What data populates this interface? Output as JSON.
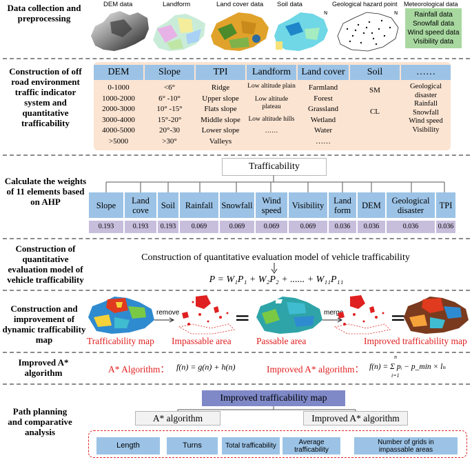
{
  "stages": [
    "Data collection and preprocessing",
    "Construction of off road environment traffic indicator system and quantitative trafficability",
    "Calculate the weights of 11 elements based on AHP",
    "Construction of quantitative evaluation model of vehicle trafficability",
    "Construction and improvement of dynamic trafficability map",
    "Improved A* algorithm",
    "Path planning and comparative analysis"
  ],
  "data_sources": {
    "dem": "DEM data",
    "landform": "Landform",
    "landcover": "Land cover data",
    "soil": "Soil data",
    "geo": "Geological hazard point",
    "met": "Meteorological data",
    "met_items": [
      "Rainfall data",
      "Snowfall data",
      "Wind speed data",
      "Visibility data"
    ]
  },
  "indicators": [
    {
      "header": "DEM",
      "values": [
        "0-1000",
        "1000-2000",
        "2000-3000",
        "3000-4000",
        "4000-5000",
        ">5000"
      ]
    },
    {
      "header": "Slope",
      "values": [
        "<6°",
        "6° -10°",
        "10° -15°",
        "15°-20°",
        "20°-30",
        ">30°"
      ]
    },
    {
      "header": "TPI",
      "values": [
        "Ridge",
        "Upper slope",
        "Flats slope",
        "Middle slope",
        "Lower slope",
        "Valleys"
      ]
    },
    {
      "header": "Landform",
      "values": [
        "Low altitude plain",
        "Low altitude plateau",
        "Low altitude hills",
        "……"
      ]
    },
    {
      "header": "Land cover",
      "values": [
        "Farmland",
        "Forest",
        "Grassland",
        "Wetland",
        "Water",
        "……"
      ]
    },
    {
      "header": "Soil",
      "values": [
        "SM",
        "CL"
      ]
    },
    {
      "header": "……",
      "values": [
        "Geological disaster",
        "Rainfall",
        "Snowfall",
        "Wind speed",
        "Visibility"
      ]
    }
  ],
  "ahp": {
    "root": "Trafficability",
    "elements": [
      {
        "name": "Slope",
        "weight": "0.193"
      },
      {
        "name": "Land cove",
        "weight": "0.193"
      },
      {
        "name": "Soil",
        "weight": "0.193"
      },
      {
        "name": "Rainfall",
        "weight": "0.069"
      },
      {
        "name": "Snowfall",
        "weight": "0.069"
      },
      {
        "name": "Wind speed",
        "weight": "0.069"
      },
      {
        "name": "Visibility",
        "weight": "0.069"
      },
      {
        "name": "Land form",
        "weight": "0.036"
      },
      {
        "name": "DEM",
        "weight": "0.036"
      },
      {
        "name": "Geological disaster",
        "weight": "0.036"
      },
      {
        "name": "TPI",
        "weight": "0.036"
      }
    ]
  },
  "model": {
    "title": "Construction of quantitative evaluation model of vehicle trafficability",
    "formula": "P = W₁P₁ + W₂P₂ + ...... + W₁₁P₁₁"
  },
  "maps": {
    "remove": "remove",
    "merge": "merge",
    "labels": [
      "Trafficability map",
      "Impassable area",
      "Passable area",
      "Improved trafficability map"
    ],
    "equals": "="
  },
  "astar": {
    "label": "A* Algorithm：",
    "formula": "f(n) = g(n) + h(n)",
    "improved_label": "Improved A* algorithm：",
    "improved_formula": "f(n) = Σ pᵢ − p_min × lₙ",
    "sum_top": "n",
    "sum_bottom": "i=1"
  },
  "planning": {
    "map": "Improved trafficability map",
    "a_star": "A* algorithm",
    "improved": "Improved A* algorithm",
    "metrics": [
      "Length",
      "Turns",
      "Total trafficability",
      "Average trafficability",
      "Number of grids in impassable areas"
    ]
  },
  "colors": {
    "blue": "#9cc3e6",
    "orange": "#f9d9bf",
    "purple": "#c7bedc",
    "green": "#a8d8a0",
    "red": "#e02020",
    "navy_box": "#7f89c8"
  }
}
